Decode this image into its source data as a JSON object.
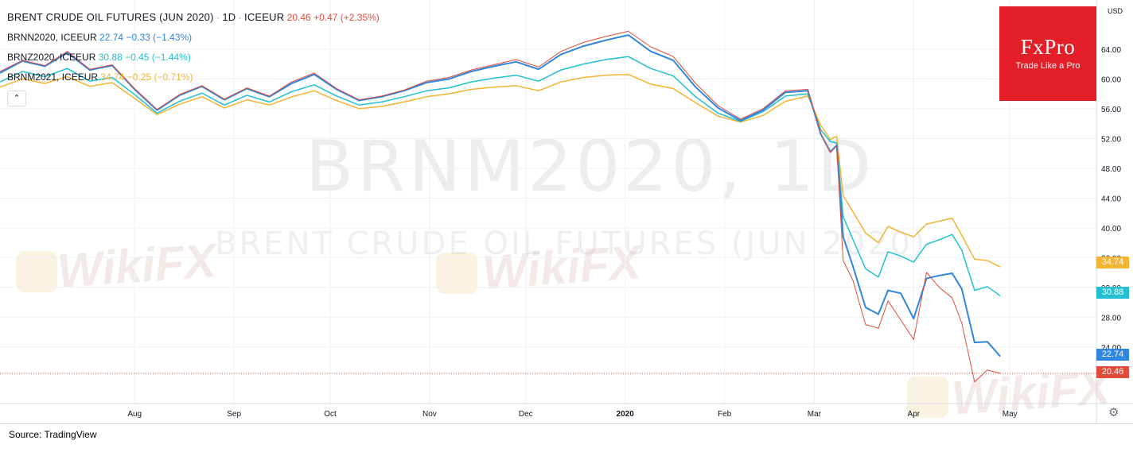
{
  "header": {
    "title": "BRENT CRUDE OIL FUTURES (JUN 2020)",
    "interval": "1D",
    "exchange": "ICEEUR",
    "separator": "·",
    "last": "20.46",
    "change": "+0.47 (+2.35%)"
  },
  "legend": [
    {
      "name": "BRNN2020, ICEEUR",
      "value": "22.74",
      "change": "−0.33 (−1.43%)",
      "color": "#2e86de"
    },
    {
      "name": "BRNZ2020, ICEEUR",
      "value": "30.88",
      "change": "−0.45 (−1.44%)",
      "color": "#22bfd0"
    },
    {
      "name": "BRNM2021, ICEEUR",
      "value": "34.74",
      "change": "−0.25 (−0.71%)",
      "color": "#f2b431"
    }
  ],
  "collapse_icon": "chevron-up-icon",
  "watermark": {
    "symbol": "BRNM2020, 1D",
    "description": "BRENT CRUDE OIL FUTURES (JUN 2020)"
  },
  "brand": {
    "name": "FxPro",
    "tagline": "Trade Like a Pro",
    "color": "#e41e26",
    "overlay_text": "WikiFX"
  },
  "currency": "USD",
  "price_tags": [
    {
      "value": "34.74",
      "color": "#f2b431"
    },
    {
      "value": "30.88",
      "color": "#22bfd0"
    },
    {
      "value": "22.74",
      "color": "#2e86de"
    },
    {
      "value": "20.46",
      "color": "#e04b3a"
    }
  ],
  "settings_icon": "gear-icon",
  "source": "Source: TradingView",
  "chart_data": {
    "type": "line",
    "x_type": "date",
    "xlim": [
      "2020-06-20",
      "2021-05-28"
    ],
    "ylim": [
      16.4,
      70.6
    ],
    "y_ticks": [
      "64.00",
      "60.00",
      "56.00",
      "52.00",
      "48.00",
      "44.00",
      "40.00",
      "36.00",
      "32.00",
      "28.00",
      "24.00"
    ],
    "x_ticks": [
      {
        "date": "2020-08-01",
        "label": "Aug"
      },
      {
        "date": "2020-09-01",
        "label": "Sep"
      },
      {
        "date": "2020-10-01",
        "label": "Oct"
      },
      {
        "date": "2020-11-01",
        "label": "Nov"
      },
      {
        "date": "2020-12-01",
        "label": "Dec"
      },
      {
        "date": "2021-01-01",
        "label": "2020"
      },
      {
        "date": "2021-02-01",
        "label": "Feb"
      },
      {
        "date": "2021-03-01",
        "label": "Mar"
      },
      {
        "date": "2021-04-01",
        "label": "Apr"
      },
      {
        "date": "2021-05-01",
        "label": "May"
      }
    ],
    "last_price_line": 20.46,
    "grid": true,
    "series": [
      {
        "name": "BRNM2021",
        "color": "#f2b431",
        "points": [
          [
            "2020-06-20",
            58.9
          ],
          [
            "2020-06-27",
            60.0
          ],
          [
            "2020-07-04",
            59.4
          ],
          [
            "2020-07-11",
            60.3
          ],
          [
            "2020-07-18",
            59.0
          ],
          [
            "2020-07-25",
            59.5
          ],
          [
            "2020-08-01",
            57.4
          ],
          [
            "2020-08-08",
            55.2
          ],
          [
            "2020-08-15",
            56.6
          ],
          [
            "2020-08-22",
            57.6
          ],
          [
            "2020-08-29",
            56.1
          ],
          [
            "2020-09-05",
            57.2
          ],
          [
            "2020-09-12",
            56.5
          ],
          [
            "2020-09-19",
            57.6
          ],
          [
            "2020-09-26",
            58.4
          ],
          [
            "2020-10-03",
            57.1
          ],
          [
            "2020-10-10",
            56.0
          ],
          [
            "2020-10-17",
            56.3
          ],
          [
            "2020-10-24",
            56.9
          ],
          [
            "2020-10-31",
            57.6
          ],
          [
            "2020-11-07",
            58.0
          ],
          [
            "2020-11-14",
            58.6
          ],
          [
            "2020-11-21",
            58.9
          ],
          [
            "2020-11-28",
            59.1
          ],
          [
            "2020-12-05",
            58.4
          ],
          [
            "2020-12-12",
            59.6
          ],
          [
            "2020-12-19",
            60.2
          ],
          [
            "2020-12-26",
            60.5
          ],
          [
            "2021-01-02",
            60.6
          ],
          [
            "2021-01-09",
            59.3
          ],
          [
            "2021-01-16",
            58.7
          ],
          [
            "2021-01-23",
            56.8
          ],
          [
            "2021-01-30",
            55.0
          ],
          [
            "2021-02-06",
            54.2
          ],
          [
            "2021-02-13",
            55.1
          ],
          [
            "2021-02-20",
            57.0
          ],
          [
            "2021-02-27",
            57.7
          ],
          [
            "2021-03-03",
            53.8
          ],
          [
            "2021-03-06",
            51.9
          ],
          [
            "2021-03-08",
            52.3
          ],
          [
            "2021-03-10",
            44.3
          ],
          [
            "2021-03-13",
            42.2
          ],
          [
            "2021-03-17",
            39.3
          ],
          [
            "2021-03-21",
            38.0
          ],
          [
            "2021-03-24",
            40.2
          ],
          [
            "2021-03-28",
            39.4
          ],
          [
            "2021-04-01",
            38.8
          ],
          [
            "2021-04-05",
            40.5
          ],
          [
            "2021-04-09",
            40.9
          ],
          [
            "2021-04-13",
            41.3
          ],
          [
            "2021-04-16",
            39.0
          ],
          [
            "2021-04-20",
            35.8
          ],
          [
            "2021-04-24",
            35.6
          ],
          [
            "2021-04-28",
            34.74
          ]
        ]
      },
      {
        "name": "BRNZ2020",
        "color": "#22bfd0",
        "points": [
          [
            "2020-06-20",
            59.6
          ],
          [
            "2020-06-27",
            61.0
          ],
          [
            "2020-07-04",
            60.3
          ],
          [
            "2020-07-11",
            61.4
          ],
          [
            "2020-07-18",
            59.7
          ],
          [
            "2020-07-25",
            60.2
          ],
          [
            "2020-08-01",
            57.9
          ],
          [
            "2020-08-08",
            55.4
          ],
          [
            "2020-08-15",
            57.0
          ],
          [
            "2020-08-22",
            58.1
          ],
          [
            "2020-08-29",
            56.5
          ],
          [
            "2020-09-05",
            57.8
          ],
          [
            "2020-09-12",
            56.9
          ],
          [
            "2020-09-19",
            58.3
          ],
          [
            "2020-09-26",
            59.2
          ],
          [
            "2020-10-03",
            57.7
          ],
          [
            "2020-10-10",
            56.5
          ],
          [
            "2020-10-17",
            56.9
          ],
          [
            "2020-10-24",
            57.6
          ],
          [
            "2020-10-31",
            58.4
          ],
          [
            "2020-11-07",
            58.8
          ],
          [
            "2020-11-14",
            59.6
          ],
          [
            "2020-11-21",
            60.1
          ],
          [
            "2020-11-28",
            60.5
          ],
          [
            "2020-12-05",
            59.7
          ],
          [
            "2020-12-12",
            61.2
          ],
          [
            "2020-12-19",
            62.0
          ],
          [
            "2020-12-26",
            62.6
          ],
          [
            "2021-01-02",
            63.0
          ],
          [
            "2021-01-09",
            61.4
          ],
          [
            "2021-01-16",
            60.4
          ],
          [
            "2021-01-23",
            57.6
          ],
          [
            "2021-01-30",
            55.4
          ],
          [
            "2021-02-06",
            54.3
          ],
          [
            "2021-02-13",
            55.6
          ],
          [
            "2021-02-20",
            57.7
          ],
          [
            "2021-02-27",
            58.0
          ],
          [
            "2021-03-03",
            53.2
          ],
          [
            "2021-03-06",
            51.6
          ],
          [
            "2021-03-08",
            51.4
          ],
          [
            "2021-03-10",
            41.5
          ],
          [
            "2021-03-13",
            38.5
          ],
          [
            "2021-03-17",
            34.5
          ],
          [
            "2021-03-21",
            33.4
          ],
          [
            "2021-03-24",
            36.8
          ],
          [
            "2021-03-28",
            36.2
          ],
          [
            "2021-04-01",
            35.4
          ],
          [
            "2021-04-05",
            37.8
          ],
          [
            "2021-04-09",
            38.4
          ],
          [
            "2021-04-13",
            39.1
          ],
          [
            "2021-04-16",
            37.0
          ],
          [
            "2021-04-20",
            31.6
          ],
          [
            "2021-04-24",
            32.1
          ],
          [
            "2021-04-28",
            30.88
          ]
        ]
      },
      {
        "name": "BRNN2020",
        "color": "#2e86de",
        "points": [
          [
            "2020-06-20",
            60.8
          ],
          [
            "2020-06-27",
            62.4
          ],
          [
            "2020-07-04",
            61.7
          ],
          [
            "2020-07-11",
            63.5
          ],
          [
            "2020-07-18",
            61.2
          ],
          [
            "2020-07-25",
            61.8
          ],
          [
            "2020-08-01",
            58.6
          ],
          [
            "2020-08-08",
            55.8
          ],
          [
            "2020-08-15",
            57.8
          ],
          [
            "2020-08-22",
            59.0
          ],
          [
            "2020-08-29",
            57.2
          ],
          [
            "2020-09-05",
            58.7
          ],
          [
            "2020-09-12",
            57.6
          ],
          [
            "2020-09-19",
            59.4
          ],
          [
            "2020-09-26",
            60.6
          ],
          [
            "2020-10-03",
            58.6
          ],
          [
            "2020-10-10",
            57.1
          ],
          [
            "2020-10-17",
            57.6
          ],
          [
            "2020-10-24",
            58.4
          ],
          [
            "2020-10-31",
            59.5
          ],
          [
            "2020-11-07",
            60.0
          ],
          [
            "2020-11-14",
            61.0
          ],
          [
            "2020-11-21",
            61.7
          ],
          [
            "2020-11-28",
            62.3
          ],
          [
            "2020-12-05",
            61.3
          ],
          [
            "2020-12-12",
            63.3
          ],
          [
            "2020-12-19",
            64.4
          ],
          [
            "2020-12-26",
            65.2
          ],
          [
            "2021-01-02",
            65.9
          ],
          [
            "2021-01-09",
            63.7
          ],
          [
            "2021-01-16",
            62.5
          ],
          [
            "2021-01-23",
            58.9
          ],
          [
            "2021-01-30",
            56.1
          ],
          [
            "2021-02-06",
            54.4
          ],
          [
            "2021-02-13",
            55.8
          ],
          [
            "2021-02-20",
            58.2
          ],
          [
            "2021-02-27",
            58.4
          ],
          [
            "2021-03-03",
            52.6
          ],
          [
            "2021-03-06",
            50.2
          ],
          [
            "2021-03-08",
            51.1
          ],
          [
            "2021-03-10",
            38.8
          ],
          [
            "2021-03-13",
            34.9
          ],
          [
            "2021-03-17",
            29.3
          ],
          [
            "2021-03-21",
            28.4
          ],
          [
            "2021-03-24",
            31.6
          ],
          [
            "2021-03-28",
            31.2
          ],
          [
            "2021-04-01",
            27.8
          ],
          [
            "2021-04-05",
            33.2
          ],
          [
            "2021-04-09",
            33.6
          ],
          [
            "2021-04-13",
            33.9
          ],
          [
            "2021-04-16",
            31.8
          ],
          [
            "2021-04-20",
            24.6
          ],
          [
            "2021-04-24",
            24.7
          ],
          [
            "2021-04-28",
            22.74
          ]
        ]
      },
      {
        "name": "BRNM2020",
        "color": "#e04b3a",
        "points": [
          [
            "2020-06-20",
            61.0
          ],
          [
            "2020-06-27",
            62.5
          ],
          [
            "2020-07-04",
            61.8
          ],
          [
            "2020-07-11",
            63.7
          ],
          [
            "2020-07-18",
            61.3
          ],
          [
            "2020-07-25",
            61.9
          ],
          [
            "2020-08-01",
            58.7
          ],
          [
            "2020-08-08",
            55.9
          ],
          [
            "2020-08-15",
            57.9
          ],
          [
            "2020-08-22",
            59.1
          ],
          [
            "2020-08-29",
            57.3
          ],
          [
            "2020-09-05",
            58.8
          ],
          [
            "2020-09-12",
            57.7
          ],
          [
            "2020-09-19",
            59.6
          ],
          [
            "2020-09-26",
            60.8
          ],
          [
            "2020-10-03",
            58.7
          ],
          [
            "2020-10-10",
            57.2
          ],
          [
            "2020-10-17",
            57.7
          ],
          [
            "2020-10-24",
            58.5
          ],
          [
            "2020-10-31",
            59.7
          ],
          [
            "2020-11-07",
            60.2
          ],
          [
            "2020-11-14",
            61.2
          ],
          [
            "2020-11-21",
            61.9
          ],
          [
            "2020-11-28",
            62.6
          ],
          [
            "2020-12-05",
            61.6
          ],
          [
            "2020-12-12",
            63.7
          ],
          [
            "2020-12-19",
            64.9
          ],
          [
            "2020-12-26",
            65.7
          ],
          [
            "2021-01-02",
            66.4
          ],
          [
            "2021-01-09",
            64.3
          ],
          [
            "2021-01-16",
            63.0
          ],
          [
            "2021-01-23",
            59.4
          ],
          [
            "2021-01-30",
            56.4
          ],
          [
            "2021-02-06",
            54.6
          ],
          [
            "2021-02-13",
            56.0
          ],
          [
            "2021-02-20",
            58.4
          ],
          [
            "2021-02-27",
            58.6
          ],
          [
            "2021-03-03",
            52.7
          ],
          [
            "2021-03-06",
            50.1
          ],
          [
            "2021-03-08",
            51.0
          ],
          [
            "2021-03-10",
            35.6
          ],
          [
            "2021-03-13",
            33.0
          ],
          [
            "2021-03-17",
            27.0
          ],
          [
            "2021-03-21",
            26.5
          ],
          [
            "2021-03-24",
            30.2
          ],
          [
            "2021-03-28",
            27.6
          ],
          [
            "2021-04-01",
            25.0
          ],
          [
            "2021-04-05",
            34.0
          ],
          [
            "2021-04-09",
            32.0
          ],
          [
            "2021-04-13",
            30.6
          ],
          [
            "2021-04-16",
            27.2
          ],
          [
            "2021-04-20",
            19.3
          ],
          [
            "2021-04-24",
            20.9
          ],
          [
            "2021-04-28",
            20.46
          ]
        ]
      }
    ]
  }
}
